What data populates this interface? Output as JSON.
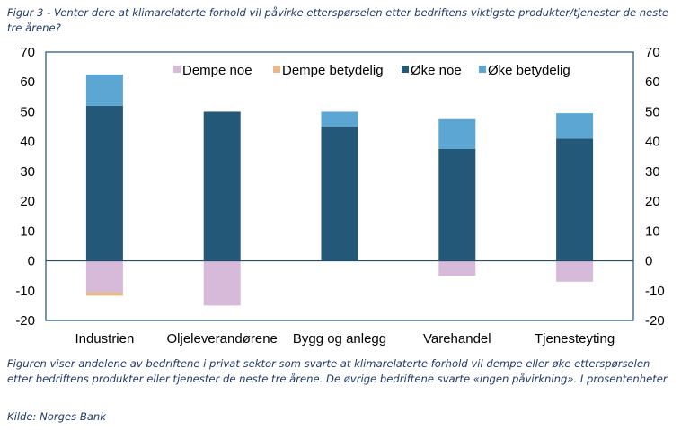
{
  "title": "Figur 3 - Venter dere at klimarelaterte forhold vil påvirke etterspørselen etter bedriftens viktigste produkter/tjenester de neste tre årene?",
  "footnote": "Figuren viser andelene av bedriftene i privat sektor som svarte at klimarelaterte forhold vil dempe eller øke etterspørselen etter bedriftens produkter eller tjenester de neste tre årene. De øvrige bedriftene svarte «ingen påvirkning». I prosentenheter",
  "source": "Kilde: Norges Bank",
  "chart_data": {
    "type": "bar",
    "stacked": true,
    "categories": [
      "Industrien",
      "Oljeleverandørene",
      "Bygg og anlegg",
      "Varehandel",
      "Tjenesteyting"
    ],
    "series": [
      {
        "name": "Dempe noe",
        "color": "#d7b9d9",
        "values": [
          -10.5,
          -15,
          0,
          -5,
          -7
        ]
      },
      {
        "name": "Dempe betydelig",
        "color": "#e8b98a",
        "values": [
          -1.2,
          0,
          0,
          0,
          0
        ]
      },
      {
        "name": "Øke noe",
        "color": "#245878",
        "values": [
          52,
          50,
          45,
          37.5,
          41
        ]
      },
      {
        "name": "Øke betydelig",
        "color": "#5ba6d3",
        "values": [
          10.5,
          0,
          5,
          10,
          8.5
        ]
      }
    ],
    "ylim": [
      -20,
      70
    ],
    "yticks": [
      -20,
      -10,
      0,
      10,
      20,
      30,
      40,
      50,
      60,
      70
    ],
    "secondary_y_axis": true,
    "grid": false,
    "legend_position": "top"
  }
}
